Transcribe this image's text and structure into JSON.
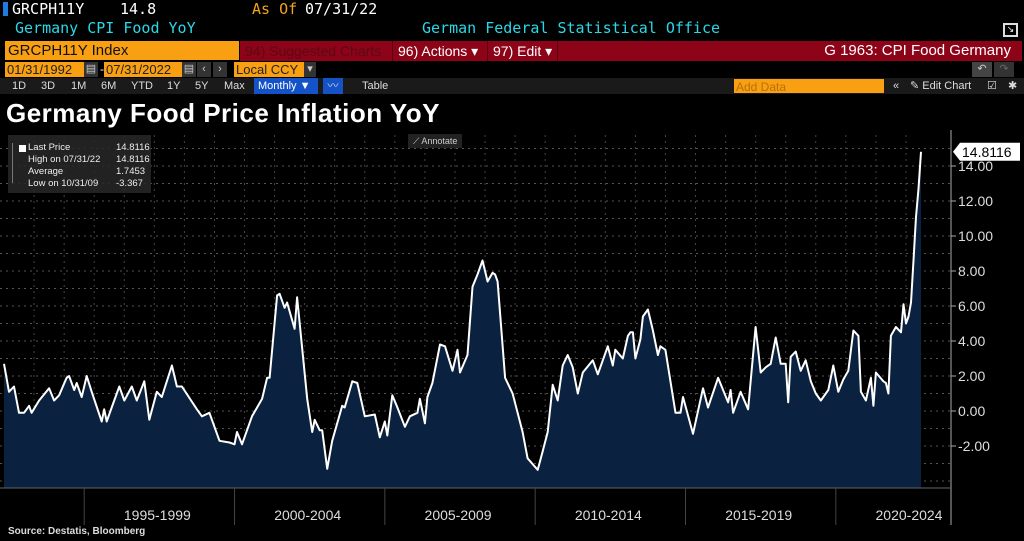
{
  "header": {
    "ticker": "GRCPH11Y",
    "last": "14.8",
    "as_of_label": "As Of",
    "as_of_date": "07/31/22",
    "description": "Germany CPI Food YoY",
    "source_org": "German Federal Statistical Office"
  },
  "toolbar": {
    "security": "GRCPH11Y Index",
    "suggested": "94) Suggested Charts",
    "actions": "96) Actions ▾",
    "edit": "97) Edit ▾",
    "graph_id": "G 1963: CPI Food Germany"
  },
  "dates": {
    "start": "01/31/1992",
    "end": "07/31/2022",
    "currency": "Local CCY"
  },
  "periods": [
    "1D",
    "3D",
    "1M",
    "6M",
    "YTD",
    "1Y",
    "5Y",
    "Max"
  ],
  "frequency": "Monthly ▼",
  "table_label": "Table",
  "add_data_placeholder": "Add Data",
  "edit_chart": "Edit Chart",
  "annotate": "Annotate",
  "colors": {
    "line": "#ffffff",
    "area": "#0a2240",
    "accent_orange": "#f9a012",
    "bar_red": "#8d0318",
    "cyan": "#2ad8e8"
  },
  "legend": [
    {
      "label": "Last Price",
      "value": "14.8116"
    },
    {
      "label": "High on 07/31/22",
      "value": "14.8116"
    },
    {
      "label": "Average",
      "value": "1.7453"
    },
    {
      "label": "Low on 10/31/09",
      "value": "-3.367"
    }
  ],
  "source": "Source: Destatis, Bloomberg",
  "chart_data": {
    "type": "area",
    "title": "Germany Food Price Inflation YoY",
    "ylim": [
      -4,
      16
    ],
    "yticks": [
      "-2.00",
      "0.00",
      "2.00",
      "4.00",
      "6.00",
      "8.00",
      "10.00",
      "12.00",
      "14.00"
    ],
    "xtick_labels": [
      "1995-1999",
      "2000-2004",
      "2005-2009",
      "2010-2014",
      "2015-2019",
      "2020-2024"
    ],
    "last_value_label": "14.8116",
    "grid": true,
    "points": [
      [
        "1992-01",
        2.7
      ],
      [
        "1992-03",
        1.1
      ],
      [
        "1992-05",
        1.4
      ],
      [
        "1992-07",
        -0.1
      ],
      [
        "1992-09",
        -0.1
      ],
      [
        "1992-11",
        0.3
      ],
      [
        "1992-12",
        -0.1
      ],
      [
        "1993-03",
        0.6
      ],
      [
        "1993-07",
        1.3
      ],
      [
        "1993-09",
        0.6
      ],
      [
        "1993-11",
        0.9
      ],
      [
        "1994-02",
        1.9
      ],
      [
        "1994-03",
        2.0
      ],
      [
        "1994-05",
        1.2
      ],
      [
        "1994-06",
        1.6
      ],
      [
        "1994-08",
        0.8
      ],
      [
        "1994-10",
        2.0
      ],
      [
        "1994-12",
        1.1
      ],
      [
        "1995-04",
        -0.6
      ],
      [
        "1995-05",
        0.1
      ],
      [
        "1995-06",
        -0.6
      ],
      [
        "1995-08",
        0.2
      ],
      [
        "1995-11",
        1.4
      ],
      [
        "1996-01",
        0.6
      ],
      [
        "1996-04",
        1.4
      ],
      [
        "1996-06",
        0.6
      ],
      [
        "1996-09",
        1.7
      ],
      [
        "1996-11",
        -0.5
      ],
      [
        "1997-02",
        1.1
      ],
      [
        "1997-04",
        0.8
      ],
      [
        "1997-08",
        2.6
      ],
      [
        "1997-10",
        1.4
      ],
      [
        "1997-12",
        1.4
      ],
      [
        "1998-06",
        0.1
      ],
      [
        "1998-08",
        -0.3
      ],
      [
        "1998-11",
        -0.1
      ],
      [
        "1999-03",
        -1.7
      ],
      [
        "1999-07",
        -1.8
      ],
      [
        "1999-09",
        -1.9
      ],
      [
        "1999-10",
        -1.2
      ],
      [
        "1999-12",
        -1.9
      ],
      [
        "2000-04",
        -0.3
      ],
      [
        "2000-08",
        0.7
      ],
      [
        "2000-10",
        1.9
      ],
      [
        "2000-11",
        1.9
      ],
      [
        "2001-02",
        6.6
      ],
      [
        "2001-03",
        6.7
      ],
      [
        "2001-05",
        5.9
      ],
      [
        "2001-06",
        6.2
      ],
      [
        "2001-09",
        4.7
      ],
      [
        "2001-10",
        6.5
      ],
      [
        "2002-02",
        0.7
      ],
      [
        "2002-04",
        -1.2
      ],
      [
        "2002-05",
        -0.5
      ],
      [
        "2002-07",
        -1.1
      ],
      [
        "2002-08",
        -1.1
      ],
      [
        "2002-10",
        -3.3
      ],
      [
        "2002-12",
        -1.7
      ],
      [
        "2003-02",
        -0.7
      ],
      [
        "2003-04",
        0.3
      ],
      [
        "2003-05",
        0.2
      ],
      [
        "2003-08",
        1.7
      ],
      [
        "2003-10",
        1.6
      ],
      [
        "2004-01",
        -0.3
      ],
      [
        "2004-05",
        -0.2
      ],
      [
        "2004-07",
        -1.5
      ],
      [
        "2004-09",
        -0.6
      ],
      [
        "2004-10",
        -1.4
      ],
      [
        "2004-12",
        0.9
      ],
      [
        "2005-02",
        0.2
      ],
      [
        "2005-05",
        -0.9
      ],
      [
        "2005-07",
        -0.3
      ],
      [
        "2005-10",
        -0.1
      ],
      [
        "2005-11",
        0.7
      ],
      [
        "2006-01",
        -0.7
      ],
      [
        "2006-02",
        0.8
      ],
      [
        "2006-04",
        1.6
      ],
      [
        "2006-07",
        3.8
      ],
      [
        "2006-09",
        3.7
      ],
      [
        "2006-12",
        2.3
      ],
      [
        "2007-02",
        3.5
      ],
      [
        "2007-03",
        2.2
      ],
      [
        "2007-06",
        3.2
      ],
      [
        "2007-08",
        7.1
      ],
      [
        "2007-10",
        7.8
      ],
      [
        "2007-12",
        8.6
      ],
      [
        "2008-02",
        7.4
      ],
      [
        "2008-04",
        7.9
      ],
      [
        "2008-05",
        7.8
      ],
      [
        "2008-06",
        7.4
      ],
      [
        "2008-09",
        1.9
      ],
      [
        "2008-12",
        1.0
      ],
      [
        "2009-04",
        -1.2
      ],
      [
        "2009-06",
        -2.7
      ],
      [
        "2009-10",
        -3.367
      ],
      [
        "2009-12",
        -2.3
      ],
      [
        "2010-02",
        -1.2
      ],
      [
        "2010-04",
        1.5
      ],
      [
        "2010-06",
        0.6
      ],
      [
        "2010-08",
        2.6
      ],
      [
        "2010-10",
        3.2
      ],
      [
        "2010-12",
        2.5
      ],
      [
        "2011-02",
        1.0
      ],
      [
        "2011-04",
        2.2
      ],
      [
        "2011-08",
        2.9
      ],
      [
        "2011-10",
        2.1
      ],
      [
        "2012-02",
        3.7
      ],
      [
        "2012-04",
        2.6
      ],
      [
        "2012-05",
        3.5
      ],
      [
        "2012-08",
        3.0
      ],
      [
        "2012-10",
        4.3
      ],
      [
        "2012-11",
        4.5
      ],
      [
        "2012-12",
        4.5
      ],
      [
        "2013-01",
        3.0
      ],
      [
        "2013-03",
        4.1
      ],
      [
        "2013-04",
        5.4
      ],
      [
        "2013-06",
        5.8
      ],
      [
        "2013-08",
        4.6
      ],
      [
        "2013-10",
        3.2
      ],
      [
        "2013-11",
        3.7
      ],
      [
        "2014-01",
        3.5
      ],
      [
        "2014-05",
        -0.1
      ],
      [
        "2014-07",
        -0.1
      ],
      [
        "2014-08",
        0.8
      ],
      [
        "2014-12",
        -1.3
      ],
      [
        "2015-04",
        1.3
      ],
      [
        "2015-06",
        0.2
      ],
      [
        "2015-10",
        1.9
      ],
      [
        "2016-02",
        0.5
      ],
      [
        "2016-03",
        1.2
      ],
      [
        "2016-04",
        -0.1
      ],
      [
        "2016-07",
        1.1
      ],
      [
        "2016-10",
        0.1
      ],
      [
        "2017-01",
        4.8
      ],
      [
        "2017-03",
        2.2
      ],
      [
        "2017-05",
        2.5
      ],
      [
        "2017-07",
        2.7
      ],
      [
        "2017-09",
        4.2
      ],
      [
        "2017-11",
        2.7
      ],
      [
        "2018-01",
        2.7
      ],
      [
        "2018-02",
        0.5
      ],
      [
        "2018-03",
        3.1
      ],
      [
        "2018-05",
        3.4
      ],
      [
        "2018-07",
        2.3
      ],
      [
        "2018-09",
        2.9
      ],
      [
        "2018-11",
        1.7
      ],
      [
        "2019-01",
        1.0
      ],
      [
        "2019-03",
        0.6
      ],
      [
        "2019-06",
        1.2
      ],
      [
        "2019-08",
        2.6
      ],
      [
        "2019-10",
        1.1
      ],
      [
        "2019-12",
        1.8
      ],
      [
        "2020-02",
        2.3
      ],
      [
        "2020-04",
        4.6
      ],
      [
        "2020-06",
        4.3
      ],
      [
        "2020-07",
        1.1
      ],
      [
        "2020-09",
        0.6
      ],
      [
        "2020-11",
        1.9
      ],
      [
        "2020-12",
        0.3
      ],
      [
        "2021-01",
        2.2
      ],
      [
        "2021-04",
        1.7
      ],
      [
        "2021-05",
        1.6
      ],
      [
        "2021-06",
        1.0
      ],
      [
        "2021-07",
        4.3
      ],
      [
        "2021-09",
        4.8
      ],
      [
        "2021-11",
        4.5
      ],
      [
        "2021-12",
        6.1
      ],
      [
        "2022-01",
        5.0
      ],
      [
        "2022-02",
        5.4
      ],
      [
        "2022-03",
        6.2
      ],
      [
        "2022-04",
        8.6
      ],
      [
        "2022-05",
        11.1
      ],
      [
        "2022-06",
        12.7
      ],
      [
        "2022-07",
        14.8116
      ]
    ]
  }
}
